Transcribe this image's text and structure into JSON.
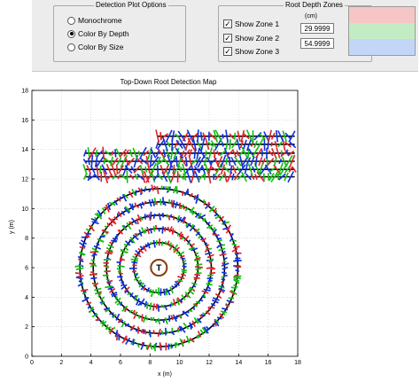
{
  "detection_options": {
    "title": "Detection Plot Options",
    "options": [
      {
        "label": "Monochrome",
        "selected": false
      },
      {
        "label": "Color By Depth",
        "selected": true
      },
      {
        "label": "Color By Size",
        "selected": false
      }
    ]
  },
  "root_depth_zones": {
    "title": "Root Depth Zones",
    "unit": "(cm)",
    "zones": [
      {
        "label": "Show Zone 1",
        "checked": true,
        "color": "#f6c6c6"
      },
      {
        "label": "Show Zone 2",
        "checked": true,
        "color": "#c4ecc4"
      },
      {
        "label": "Show Zone 3",
        "checked": true,
        "color": "#c4d6f8"
      }
    ],
    "boundary_1": "29.9999",
    "boundary_2": "54.9999"
  },
  "chart_data": {
    "type": "scatter",
    "title": "Top-Down Root Detection Map",
    "xlabel": "x (m)",
    "ylabel": "y (m)",
    "xlim": [
      0,
      18
    ],
    "ylim": [
      0,
      18
    ],
    "xticks": [
      0,
      2,
      4,
      6,
      8,
      10,
      12,
      14,
      16,
      18
    ],
    "yticks": [
      0,
      2,
      4,
      6,
      8,
      10,
      12,
      14,
      16,
      18
    ],
    "grid": true,
    "tree_marker": {
      "label": "T",
      "x": 8.6,
      "y": 6.0
    },
    "scan_circles": {
      "center": [
        8.6,
        6.0
      ],
      "radii": [
        1.7,
        2.65,
        3.55,
        4.45,
        5.35
      ]
    },
    "scan_lines": {
      "x_start": 3.6,
      "x_end": 17.8,
      "y": [
        12.15,
        12.65,
        13.2,
        13.75,
        14.35,
        14.9
      ],
      "y_starts_at_x": 8.5,
      "y_threshold": 13.9
    },
    "colors": {
      "zone1": "#e0202a",
      "zone2": "#10c010",
      "zone3": "#1030e0"
    }
  }
}
